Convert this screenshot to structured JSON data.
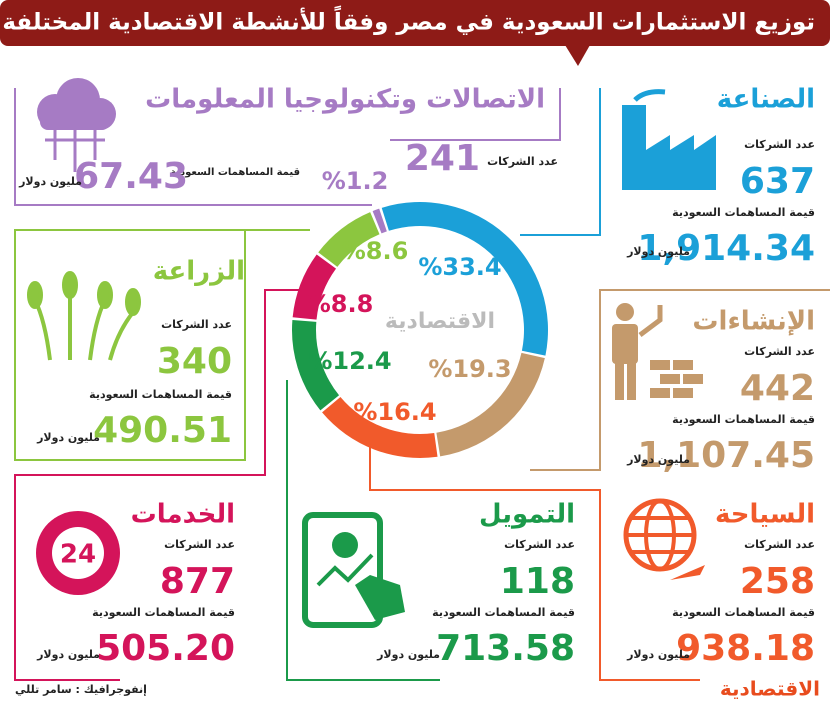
{
  "title": "توزيع الاستثمارات السعودية في مصر وفقاً للأنشطة الاقتصادية المختلفة",
  "labels": {
    "companies": "عدد الشركات",
    "contribution": "قيمة المساهمات السعودية",
    "unit": "مليون دولار"
  },
  "chart_data": {
    "type": "pie",
    "categories": [
      "الصناعة",
      "الإنشاءات",
      "السياحة",
      "التمويل",
      "الخدمات",
      "الزراعة",
      "الاتصالات وتكنولوجيا المعلومات"
    ],
    "values": [
      33.4,
      19.3,
      16.4,
      12.4,
      8.8,
      8.6,
      1.2
    ],
    "value_labels": [
      "%33.4",
      "%19.3",
      "%16.4",
      "%12.4",
      "%8.8",
      "%8.6",
      "%1.2"
    ],
    "colors": [
      "#1ba0d8",
      "#c49a6c",
      "#f15a2b",
      "#1b9a4a",
      "#d4145a",
      "#8cc63f",
      "#a67bc4"
    ]
  },
  "panels": [
    {
      "companies": 637,
      "contribution": "1,914.34"
    },
    {
      "companies": 442,
      "contribution": "1,107.45"
    },
    {
      "companies": 258,
      "contribution": "938.18"
    },
    {
      "companies": 118,
      "contribution": "713.58"
    },
    {
      "companies": 877,
      "contribution": "505.20"
    },
    {
      "companies": 340,
      "contribution": "490.51"
    },
    {
      "companies": 241,
      "contribution": "67.43"
    }
  ],
  "services_icon_text": "24",
  "brand": "الاقتصادية",
  "credit": "إنفوجرافيك : سامر تللي"
}
